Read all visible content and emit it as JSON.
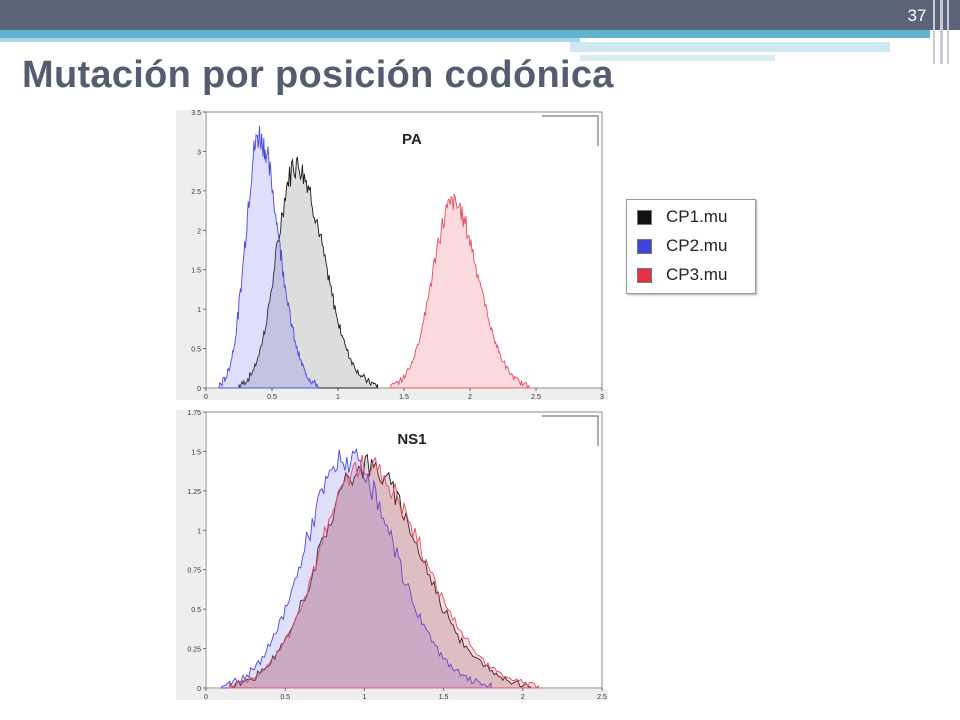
{
  "slide": {
    "number": "37",
    "title": "Mutación por posición codónica"
  },
  "colors": {
    "cp1": "#000000",
    "cp2": "#3333dd",
    "cp3": "#e53045"
  },
  "legend": {
    "items": [
      {
        "label": "CP1.mu",
        "color": "#111111"
      },
      {
        "label": "CP2.mu",
        "color": "#4040dd"
      },
      {
        "label": "CP3.mu",
        "color": "#e53045"
      }
    ]
  },
  "chart_data": [
    {
      "type": "area",
      "title": "PA",
      "xlim": [
        0,
        3
      ],
      "ylim": [
        0,
        3.5
      ],
      "xticks": [
        "0",
        "0.5",
        "1",
        "1.5",
        "2",
        "2.5",
        "3"
      ],
      "yticks": [
        "0",
        "0.5",
        "1",
        "1.5",
        "2",
        "2.5",
        "3",
        "3.5"
      ],
      "series": [
        {
          "name": "CP1.mu",
          "peak_x": 0.68,
          "peak_y": 2.85,
          "range": [
            0.25,
            1.3
          ]
        },
        {
          "name": "CP2.mu",
          "peak_x": 0.4,
          "peak_y": 3.2,
          "range": [
            0.1,
            0.85
          ]
        },
        {
          "name": "CP3.mu",
          "peak_x": 1.87,
          "peak_y": 2.35,
          "range": [
            1.4,
            2.45
          ]
        }
      ]
    },
    {
      "type": "area",
      "title": "NS1",
      "xlim": [
        0,
        2.5
      ],
      "ylim": [
        0,
        1.75
      ],
      "xticks": [
        "0",
        "0.5",
        "1",
        "1.5",
        "2",
        "2.5"
      ],
      "yticks": [
        "0",
        "0.25",
        "0.5",
        "0.75",
        "1",
        "1.25",
        "1.5",
        "1.75"
      ],
      "series": [
        {
          "name": "CP1.mu",
          "peak_x": 1.0,
          "peak_y": 1.42,
          "range": [
            0.15,
            2.05
          ]
        },
        {
          "name": "CP2.mu",
          "peak_x": 0.88,
          "peak_y": 1.45,
          "range": [
            0.1,
            1.8
          ]
        },
        {
          "name": "CP3.mu",
          "peak_x": 1.0,
          "peak_y": 1.42,
          "range": [
            0.15,
            2.1
          ]
        }
      ]
    }
  ]
}
